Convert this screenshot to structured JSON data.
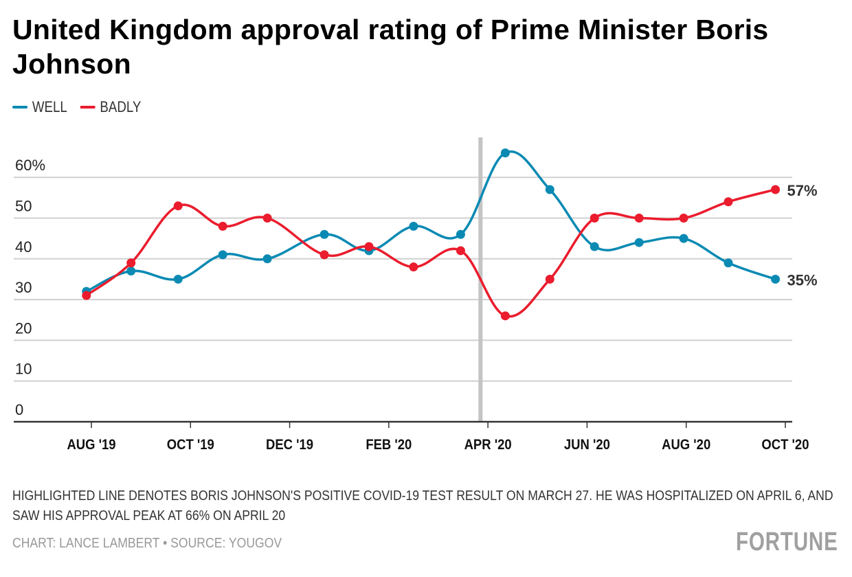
{
  "title": "United Kingdom approval rating of Prime Minister Boris Johnson",
  "legend": [
    {
      "label": "WELL",
      "color": "#0a8ab3"
    },
    {
      "label": "BADLY",
      "color": "#ea1c2d"
    }
  ],
  "note": "HIGHLIGHTED LINE DENOTES BORIS JOHNSON'S POSITIVE COVID-19 TEST RESULT ON MARCH 27. HE WAS HOSPITALIZED ON APRIL 6, AND SAW HIS APPROVAL PEAK AT 66% ON APRIL 20",
  "credit": "CHART: LANCE LAMBERT • SOURCE: YOUGOV",
  "brand": "FORTUNE",
  "chart_data": {
    "type": "line",
    "title": "United Kingdom approval rating of Prime Minister Boris Johnson",
    "xlabel": "",
    "ylabel": "",
    "ylim": [
      0,
      66
    ],
    "yticks": [
      0,
      10,
      20,
      30,
      40,
      50,
      60
    ],
    "ytick_labels": [
      "0",
      "10",
      "20",
      "30",
      "40",
      "50",
      "60%"
    ],
    "grid": true,
    "legend_position": "top-left",
    "xticks": [
      "AUG '19",
      "OCT '19",
      "DEC '19",
      "FEB '20",
      "APR '20",
      "JUN '20",
      "AUG '20",
      "OCT '20"
    ],
    "x": [
      -0.1,
      0.8,
      1.75,
      2.65,
      3.55,
      4.7,
      5.6,
      6.5,
      7.45,
      8.35,
      9.25,
      10.15,
      11.05,
      11.95,
      12.85,
      13.8
    ],
    "series": [
      {
        "name": "WELL",
        "color": "#0a8ab3",
        "values": [
          32,
          37,
          35,
          41,
          40,
          46,
          42,
          48,
          46,
          66,
          57,
          43,
          44,
          45,
          39,
          35
        ],
        "end_label": "35%"
      },
      {
        "name": "BADLY",
        "color": "#ea1c2d",
        "values": [
          31,
          39,
          53,
          48,
          50,
          41,
          43,
          38,
          42,
          26,
          35,
          50,
          50,
          50,
          54,
          57
        ],
        "end_label": "57%"
      }
    ],
    "annotations": [
      {
        "type": "vertical-line",
        "x": 7.85,
        "meaning": "Positive COVID-19 test, March 27"
      }
    ]
  }
}
